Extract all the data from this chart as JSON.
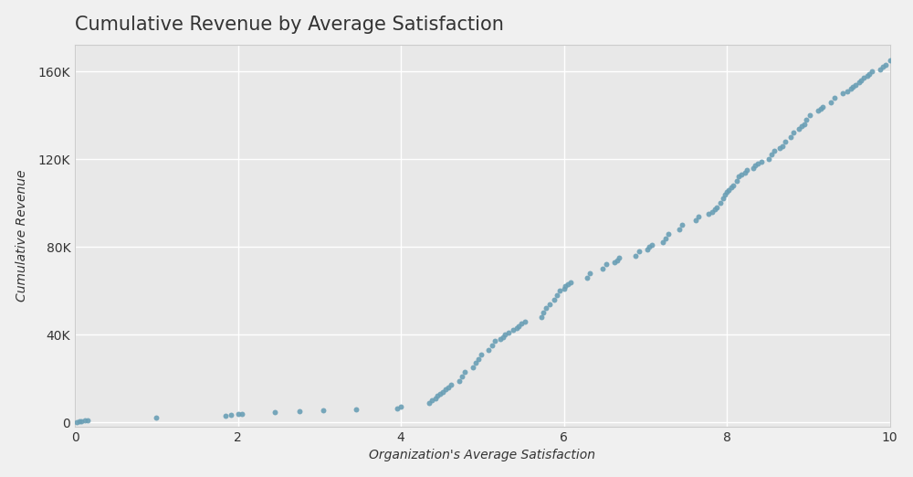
{
  "title": "Cumulative Revenue by Average Satisfaction",
  "xlabel": "Organization's Average Satisfaction",
  "ylabel": "Cumulative Revenue",
  "background_color": "#f0f0f0",
  "axes_color": "#e8e8e8",
  "text_color": "#333333",
  "dot_color": "#6a9fb5",
  "grid_color": "#ffffff",
  "spine_color": "#cccccc",
  "xlim": [
    0,
    10
  ],
  "ylim": [
    -2000,
    172000
  ],
  "xticks": [
    0,
    2,
    4,
    6,
    8,
    10
  ],
  "yticks": [
    0,
    40000,
    80000,
    120000,
    160000
  ],
  "ytick_labels": [
    "0",
    "40K",
    "80K",
    "120K",
    "160K"
  ],
  "x": [
    0.02,
    0.05,
    0.08,
    0.12,
    0.15,
    1.0,
    1.85,
    1.92,
    2.0,
    2.05,
    2.45,
    2.75,
    3.05,
    3.45,
    3.95,
    4.0,
    4.35,
    4.38,
    4.42,
    4.45,
    4.48,
    4.52,
    4.55,
    4.58,
    4.62,
    4.72,
    4.75,
    4.78,
    4.88,
    4.92,
    4.95,
    4.98,
    5.08,
    5.12,
    5.15,
    5.22,
    5.25,
    5.28,
    5.32,
    5.38,
    5.42,
    5.45,
    5.48,
    5.52,
    5.72,
    5.75,
    5.78,
    5.82,
    5.88,
    5.92,
    5.95,
    6.0,
    6.02,
    6.05,
    6.08,
    6.28,
    6.32,
    6.48,
    6.52,
    6.62,
    6.65,
    6.68,
    6.88,
    6.92,
    7.02,
    7.05,
    7.08,
    7.22,
    7.25,
    7.28,
    7.42,
    7.45,
    7.62,
    7.65,
    7.78,
    7.82,
    7.85,
    7.88,
    7.92,
    7.95,
    7.98,
    8.0,
    8.02,
    8.05,
    8.08,
    8.12,
    8.15,
    8.18,
    8.22,
    8.25,
    8.32,
    8.35,
    8.38,
    8.42,
    8.52,
    8.55,
    8.58,
    8.65,
    8.68,
    8.72,
    8.78,
    8.82,
    8.88,
    8.92,
    8.95,
    8.98,
    9.02,
    9.12,
    9.15,
    9.18,
    9.28,
    9.32,
    9.42,
    9.48,
    9.52,
    9.55,
    9.58,
    9.62,
    9.65,
    9.68,
    9.72,
    9.75,
    9.78,
    9.88,
    9.92,
    9.95,
    10.0
  ],
  "y": [
    200,
    400,
    600,
    800,
    1000,
    2200,
    2800,
    3200,
    3600,
    4000,
    4500,
    5000,
    5500,
    6000,
    6500,
    7000,
    9000,
    10000,
    11000,
    12000,
    13000,
    14000,
    15000,
    16000,
    17000,
    19000,
    21000,
    23000,
    25000,
    27000,
    29000,
    31000,
    33000,
    35000,
    37000,
    38000,
    39000,
    40000,
    41000,
    42000,
    43000,
    44000,
    45000,
    46000,
    48000,
    50000,
    52000,
    54000,
    56000,
    58000,
    60000,
    61000,
    62000,
    63000,
    64000,
    66000,
    68000,
    70000,
    72000,
    73000,
    74000,
    75000,
    76000,
    78000,
    79000,
    80000,
    81000,
    82000,
    84000,
    86000,
    88000,
    90000,
    92000,
    94000,
    95000,
    96000,
    97000,
    98000,
    100000,
    102000,
    104000,
    105000,
    106000,
    107000,
    108000,
    110000,
    112000,
    113000,
    114000,
    115000,
    116000,
    117000,
    118000,
    119000,
    120000,
    122000,
    124000,
    125000,
    126000,
    128000,
    130000,
    132000,
    134000,
    135000,
    136000,
    138000,
    140000,
    142000,
    143000,
    144000,
    146000,
    148000,
    150000,
    151000,
    152000,
    153000,
    154000,
    155000,
    156000,
    157000,
    158000,
    159000,
    160000,
    161000,
    162000,
    163000,
    165000
  ]
}
